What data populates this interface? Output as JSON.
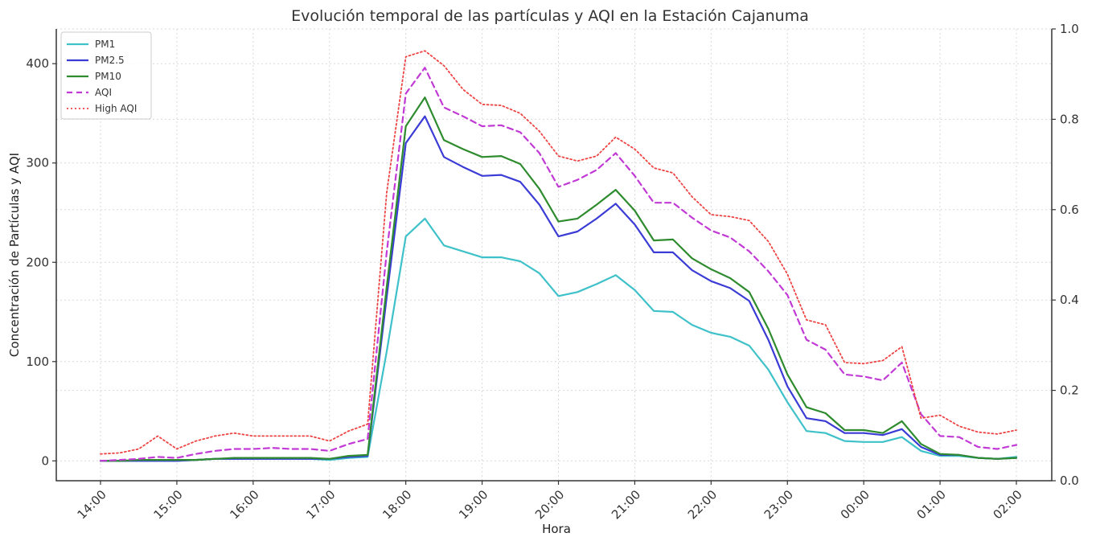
{
  "chart_data": {
    "type": "line",
    "title": "Evolución temporal de las partículas y AQI en la Estación Cajanuma",
    "xlabel": "Hora",
    "ylabel": "Concentración de Partículas y AQI",
    "x_ticks": [
      "14:00",
      "15:00",
      "16:00",
      "17:00",
      "18:00",
      "19:00",
      "20:00",
      "21:00",
      "22:00",
      "23:00",
      "00:00",
      "01:00",
      "02:00"
    ],
    "y_ticks": [
      0,
      100,
      200,
      300,
      400
    ],
    "ylim": [
      -20,
      435
    ],
    "y2_ticks": [
      "0.0",
      "0.2",
      "0.4",
      "0.6",
      "0.8",
      "1.0"
    ],
    "y2lim": [
      0,
      1
    ],
    "x_hours": [
      0,
      0.25,
      0.5,
      0.75,
      1,
      1.25,
      1.5,
      1.75,
      2,
      2.25,
      2.5,
      2.75,
      3,
      3.25,
      3.5,
      3.75,
      4,
      4.25,
      4.5,
      4.75,
      5,
      5.25,
      5.5,
      5.75,
      6,
      6.25,
      6.5,
      6.75,
      7,
      7.25,
      7.5,
      7.75,
      8,
      8.25,
      8.5,
      8.75,
      9,
      9.25,
      9.5,
      9.75,
      10,
      10.25,
      10.5,
      10.75,
      11,
      11.25,
      11.5,
      11.75,
      12
    ],
    "grid": true,
    "legend_position": "top-left",
    "series": [
      {
        "name": "PM1",
        "color": "#3ec1c9",
        "style": "solid",
        "values": [
          0,
          0,
          0,
          0,
          0,
          1,
          2,
          2,
          2,
          2,
          2,
          2,
          1,
          3,
          4,
          110,
          226,
          244,
          217,
          211,
          205,
          205,
          201,
          189,
          166,
          170,
          178,
          187,
          172,
          151,
          150,
          137,
          129,
          125,
          116,
          92,
          59,
          30,
          28,
          20,
          19,
          19,
          24,
          10,
          5,
          5,
          3,
          2,
          4
        ]
      },
      {
        "name": "PM2.5",
        "color": "#3b3bd6",
        "style": "solid",
        "values": [
          0,
          0,
          0,
          0,
          0,
          1,
          2,
          2,
          2,
          2,
          2,
          2,
          2,
          4,
          5,
          165,
          320,
          347,
          306,
          296,
          287,
          288,
          281,
          258,
          226,
          231,
          244,
          259,
          238,
          210,
          210,
          192,
          181,
          174,
          161,
          122,
          75,
          43,
          40,
          28,
          28,
          26,
          32,
          14,
          6,
          6,
          3,
          2,
          3
        ]
      },
      {
        "name": "PM10",
        "color": "#2e8b2e",
        "style": "solid",
        "values": [
          0,
          0,
          1,
          1,
          1,
          1,
          2,
          3,
          3,
          3,
          3,
          3,
          2,
          5,
          6,
          175,
          337,
          366,
          323,
          314,
          306,
          307,
          299,
          274,
          241,
          244,
          258,
          273,
          252,
          222,
          223,
          204,
          193,
          184,
          170,
          133,
          87,
          54,
          48,
          31,
          31,
          28,
          40,
          17,
          7,
          6,
          3,
          2,
          3
        ]
      },
      {
        "name": "AQI",
        "color": "#c23ad6",
        "style": "dashed",
        "values": [
          0,
          1,
          2,
          4,
          3,
          7,
          10,
          12,
          12,
          13,
          12,
          12,
          10,
          17,
          22,
          210,
          370,
          396,
          356,
          347,
          337,
          338,
          331,
          310,
          276,
          283,
          293,
          310,
          287,
          260,
          260,
          245,
          232,
          225,
          211,
          191,
          167,
          122,
          112,
          87,
          85,
          81,
          99,
          47,
          25,
          24,
          14,
          12,
          16
        ]
      },
      {
        "name": "High AQI",
        "color": "#ee4444",
        "style": "dotted",
        "values": [
          7,
          8,
          12,
          25,
          12,
          20,
          25,
          28,
          25,
          25,
          25,
          25,
          20,
          30,
          37,
          270,
          407,
          413,
          398,
          374,
          359,
          358,
          350,
          332,
          307,
          302,
          307,
          326,
          314,
          295,
          290,
          266,
          248,
          246,
          242,
          221,
          188,
          142,
          137,
          99,
          98,
          101,
          115,
          43,
          46,
          35,
          29,
          27,
          31
        ]
      }
    ]
  }
}
